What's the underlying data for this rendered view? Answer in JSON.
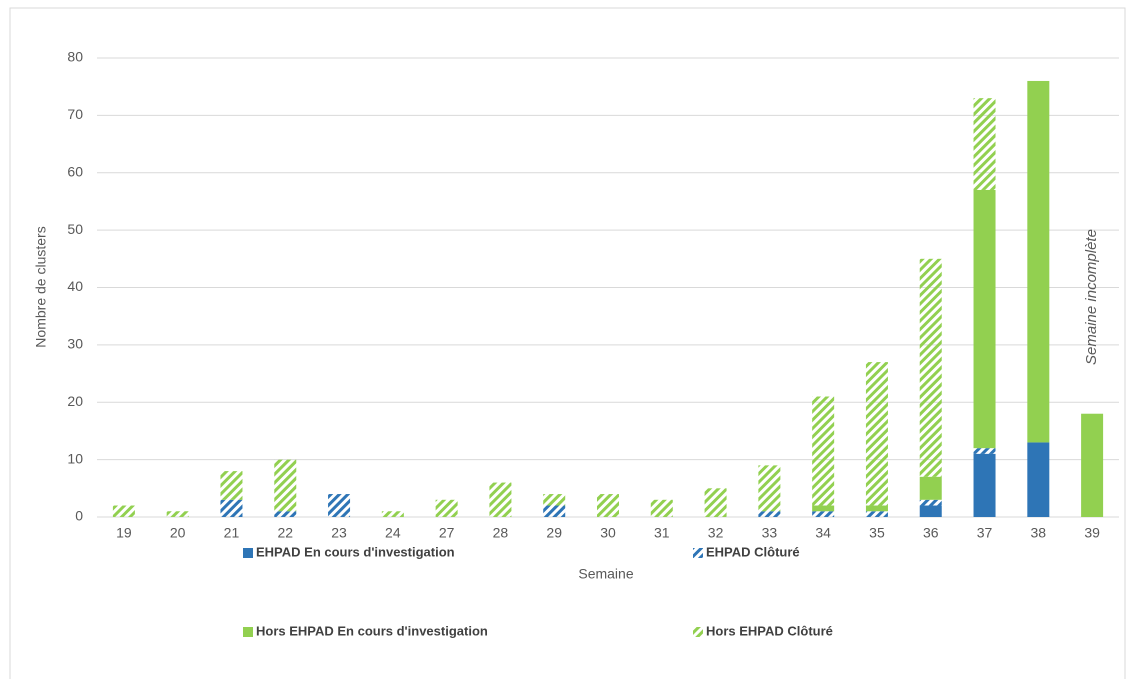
{
  "chart_data": {
    "type": "stacked_bar",
    "annotation": "Semaine incomplète",
    "x_label": "Semaine",
    "y_label": "Nombre de clusters",
    "categories": [
      "19",
      "20",
      "21",
      "22",
      "23",
      "24",
      "27",
      "28",
      "29",
      "30",
      "31",
      "32",
      "33",
      "34",
      "35",
      "36",
      "37",
      "38",
      "39"
    ],
    "series": [
      {
        "name": "EHPAD En cours d'investigation",
        "color": "#2e75b6",
        "hatched": false,
        "values": [
          0,
          0,
          0,
          0,
          0,
          0,
          0,
          0,
          0,
          0,
          0,
          0,
          0,
          0,
          0,
          2,
          11,
          13,
          0
        ]
      },
      {
        "name": "EHPAD Clôturé",
        "color": "#2e75b6",
        "hatched": true,
        "values": [
          0,
          0,
          3,
          1,
          4,
          0,
          0,
          0,
          2,
          0,
          0,
          0,
          1,
          1,
          1,
          1,
          1,
          0,
          0
        ]
      },
      {
        "name": "Hors EHPAD En cours d'investigation",
        "color": "#92d050",
        "hatched": false,
        "values": [
          0,
          0,
          0,
          0,
          0,
          0,
          0,
          0,
          0,
          0,
          0,
          0,
          0,
          1,
          1,
          4,
          45,
          63,
          18
        ]
      },
      {
        "name": "Hors EHPAD Clôturé",
        "color": "#92d050",
        "hatched": true,
        "values": [
          2,
          1,
          5,
          9,
          0,
          1,
          3,
          6,
          2,
          4,
          3,
          5,
          8,
          19,
          25,
          38,
          16,
          0,
          0
        ]
      }
    ],
    "ylim": [
      0,
      80
    ],
    "yticks": [
      0,
      10,
      20,
      30,
      40,
      50,
      60,
      70,
      80
    ],
    "grid": true
  }
}
